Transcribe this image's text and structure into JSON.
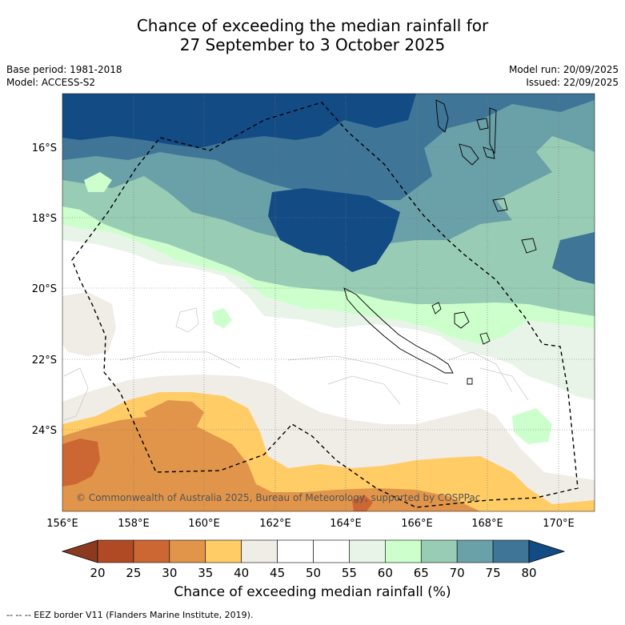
{
  "title": {
    "line1": "Chance of exceeding the median rainfall for",
    "line2": "27 September to 3 October 2025"
  },
  "meta": {
    "base_period": "Base period: 1981-2018",
    "model": "Model: ACCESS-S2",
    "model_run": "Model run: 20/09/2025",
    "issued": "Issued: 22/09/2025"
  },
  "map": {
    "lat_labels": [
      "16°S",
      "18°S",
      "20°S",
      "22°S",
      "24°S"
    ],
    "lon_labels": [
      "156°E",
      "158°E",
      "160°E",
      "162°E",
      "164°E",
      "166°E",
      "168°E",
      "170°E"
    ],
    "copyright": "© Commonwealth of Australia 2025, Bureau of Meteorology, supported by COSPPac"
  },
  "colorbar": {
    "ticks": [
      "20",
      "25",
      "30",
      "35",
      "40",
      "45",
      "50",
      "55",
      "60",
      "65",
      "70",
      "75",
      "80"
    ],
    "colors": [
      "#8c3a1f",
      "#b04a25",
      "#cc6633",
      "#e0954a",
      "#ffcc66",
      "#f0ece6",
      "#ffffff",
      "#ffffff",
      "#e8f4e8",
      "#ccffcc",
      "#99ccb4",
      "#6aa0a8",
      "#3f7596",
      "#134b85"
    ],
    "title": "Chance of exceeding median rainfall (%)"
  },
  "footer": "--  --  -- EEZ border V11 (Flanders Marine Institute, 2019)."
}
